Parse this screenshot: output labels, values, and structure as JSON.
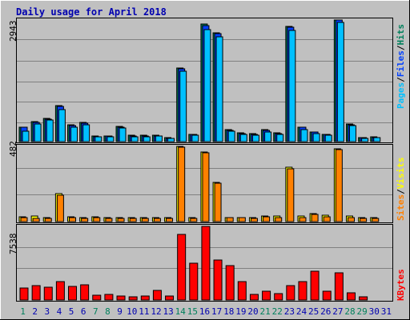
{
  "title": "Daily usage for April 2018",
  "colors": {
    "background": "#c0c0c0",
    "title": "#0000b0",
    "hits": "#00805c",
    "files": "#0040ff",
    "pages": "#00c0ff",
    "visits": "#ffff00",
    "sites": "#ff8000",
    "kbytes": "#ff0000",
    "weekday_label": "#0000b0",
    "weekend_label": "#00805c"
  },
  "chart_data": {
    "type": "bar",
    "categories": [
      "1",
      "2",
      "3",
      "4",
      "5",
      "6",
      "7",
      "8",
      "9",
      "10",
      "11",
      "12",
      "13",
      "14",
      "15",
      "16",
      "17",
      "18",
      "19",
      "20",
      "21",
      "22",
      "23",
      "24",
      "25",
      "26",
      "27",
      "28",
      "29",
      "30",
      "31"
    ],
    "weekend_days": [
      "1",
      "7",
      "8",
      "14",
      "15",
      "21",
      "22",
      "28",
      "29"
    ],
    "panels": [
      {
        "id": "top",
        "max_label": "2943",
        "ymax": 2943,
        "legend": [
          "Pages",
          "Files",
          "Hits"
        ],
        "series": [
          {
            "name": "Hits",
            "values": [
              350,
              480,
              560,
              870,
              400,
              460,
              130,
              140,
              370,
              150,
              150,
              150,
              90,
              1790,
              180,
              2840,
              2640,
              290,
              210,
              190,
              290,
              220,
              2780,
              350,
              240,
              180,
              2943,
              420,
              100,
              110,
              0
            ]
          },
          {
            "name": "Files",
            "values": [
              340,
              460,
              540,
              860,
              380,
              440,
              120,
              130,
              350,
              140,
              140,
              140,
              80,
              1760,
              170,
              2810,
              2610,
              280,
              200,
              180,
              270,
              200,
              2760,
              340,
              230,
              170,
              2943,
              400,
              90,
              100,
              0
            ]
          },
          {
            "name": "Pages",
            "values": [
              260,
              420,
              520,
              780,
              350,
              410,
              110,
              120,
              320,
              120,
              120,
              130,
              70,
              1710,
              150,
              2710,
              2540,
              260,
              180,
              160,
              240,
              180,
              2690,
              300,
              200,
              150,
              2880,
              380,
              80,
              90,
              0
            ]
          }
        ]
      },
      {
        "id": "middle",
        "max_label": "482",
        "ymax": 482,
        "legend": [
          "Sites",
          "Visits"
        ],
        "series": [
          {
            "name": "Visits",
            "values": [
              32,
              36,
              24,
              180,
              30,
              28,
              30,
              28,
              24,
              24,
              24,
              24,
              24,
              482,
              24,
              448,
              252,
              28,
              28,
              28,
              38,
              36,
              350,
              38,
              52,
              40,
              466,
              36,
              24,
              24,
              0
            ]
          },
          {
            "name": "Sites",
            "values": [
              28,
              20,
              18,
              170,
              24,
              22,
              24,
              22,
              20,
              20,
              20,
              20,
              20,
              478,
              20,
              440,
              245,
              24,
              24,
              22,
              30,
              26,
              340,
              24,
              44,
              30,
              460,
              24,
              20,
              18,
              0
            ]
          }
        ]
      },
      {
        "id": "bottom",
        "max_label": "7538",
        "ymax": 7538,
        "legend": [
          "KBytes"
        ],
        "series": [
          {
            "name": "KBytes",
            "values": [
              1250,
              1500,
              1350,
              1900,
              1380,
              1560,
              520,
              580,
              380,
              300,
              440,
              980,
              400,
              6750,
              3800,
              7538,
              4060,
              3500,
              1900,
              550,
              870,
              680,
              1500,
              1900,
              2950,
              930,
              2800,
              740,
              300,
              0,
              0
            ]
          }
        ]
      }
    ]
  }
}
